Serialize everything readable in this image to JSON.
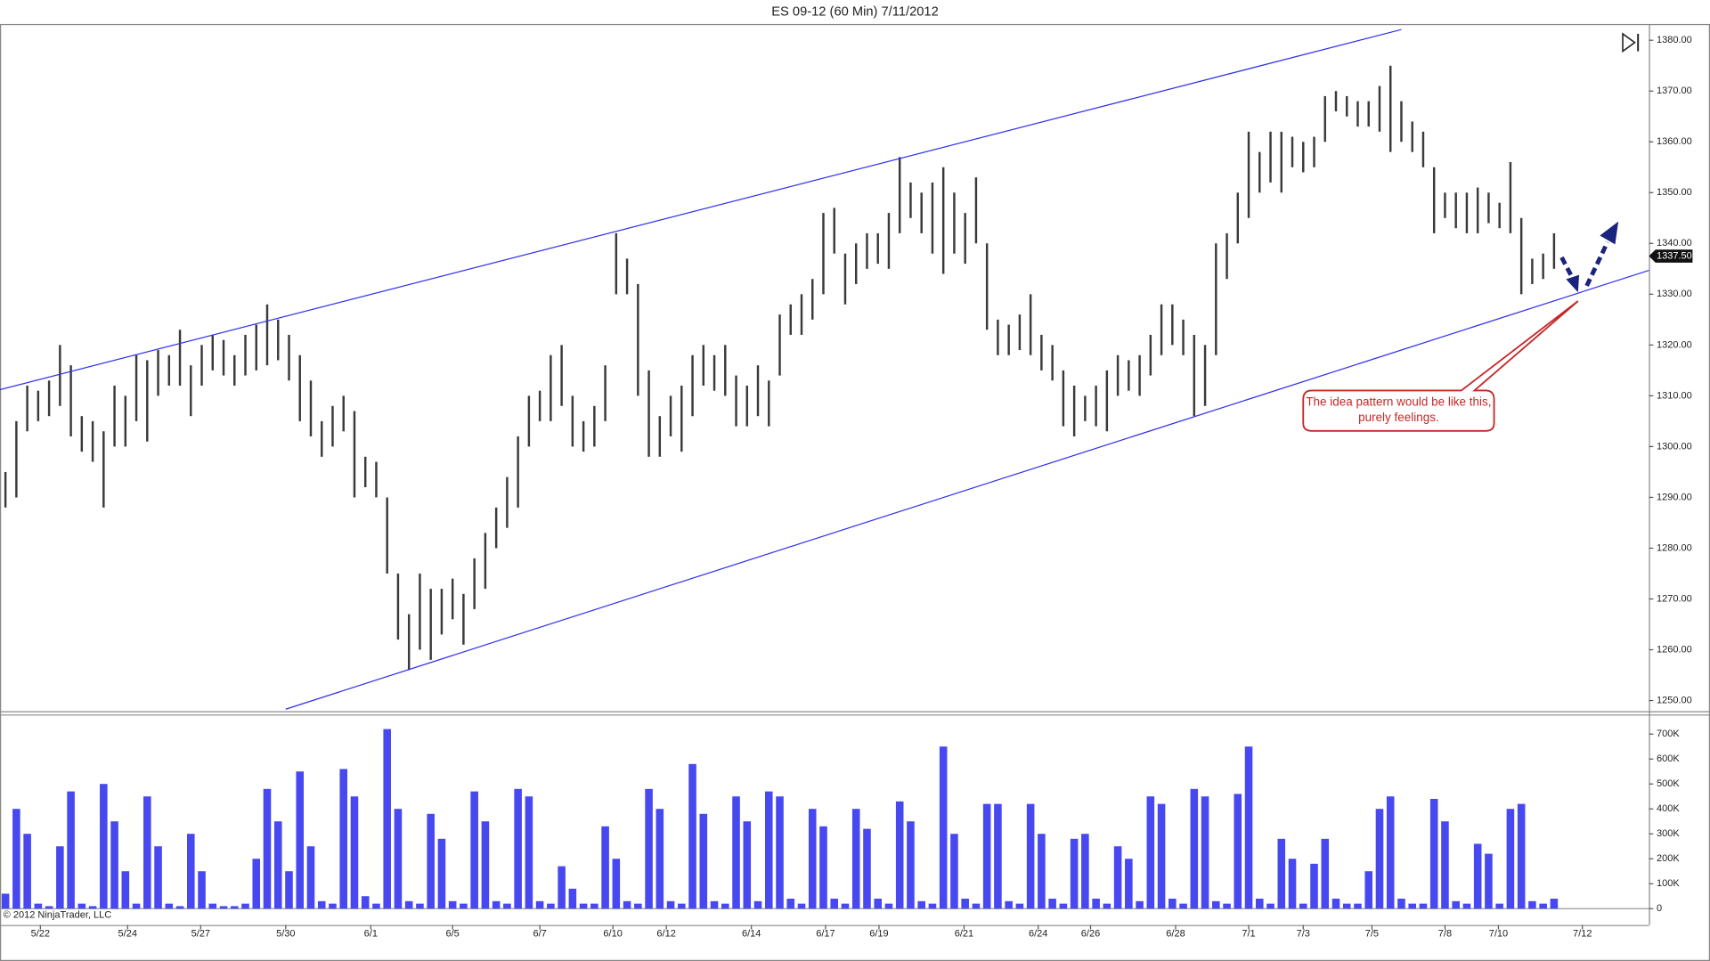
{
  "chart_data": [
    {
      "type": "ohlc",
      "title": "ES 09-12 (60 Min)  7/11/2012",
      "color": "#3a3a3a",
      "xlim": [
        -0.5,
        150.7
      ],
      "xticks": [
        {
          "value": 3.2,
          "label": "5/22"
        },
        {
          "value": 11.2,
          "label": "5/24"
        },
        {
          "value": 17.9,
          "label": "5/27"
        },
        {
          "value": 25.7,
          "label": "5/30"
        },
        {
          "value": 33.5,
          "label": "6/1"
        },
        {
          "value": 41,
          "label": "6/5"
        },
        {
          "value": 49,
          "label": "6/7"
        },
        {
          "value": 55.7,
          "label": "6/10"
        },
        {
          "value": 60.6,
          "label": "6/12"
        },
        {
          "value": 68.4,
          "label": "6/14"
        },
        {
          "value": 75.2,
          "label": "6/17"
        },
        {
          "value": 80.1,
          "label": "6/19"
        },
        {
          "value": 87.9,
          "label": "6/21"
        },
        {
          "value": 94.7,
          "label": "6/24"
        },
        {
          "value": 99.5,
          "label": "6/26"
        },
        {
          "value": 107.3,
          "label": "6/28"
        },
        {
          "value": 114,
          "label": "7/1"
        },
        {
          "value": 119,
          "label": "7/3"
        },
        {
          "value": 125.3,
          "label": "7/5"
        },
        {
          "value": 132,
          "label": "7/8"
        },
        {
          "value": 136.9,
          "label": "7/10"
        },
        {
          "value": 144.6,
          "label": "7/12"
        }
      ],
      "ylim": [
        1247.9,
        1383.2
      ],
      "yticks": [
        {
          "value": 1250,
          "label": "1250.00"
        },
        {
          "value": 1260,
          "label": "1260.00"
        },
        {
          "value": 1270,
          "label": "1270.00"
        },
        {
          "value": 1280,
          "label": "1280.00"
        },
        {
          "value": 1290,
          "label": "1290.00"
        },
        {
          "value": 1300,
          "label": "1300.00"
        },
        {
          "value": 1310,
          "label": "1310.00"
        },
        {
          "value": 1320,
          "label": "1320.00"
        },
        {
          "value": 1330,
          "label": "1330.00"
        },
        {
          "value": 1340,
          "label": "1340.00"
        },
        {
          "value": 1350,
          "label": "1350.00"
        },
        {
          "value": 1360,
          "label": "1360.00"
        },
        {
          "value": 1370,
          "label": "1370.00"
        },
        {
          "value": 1380,
          "label": "1380.00"
        }
      ],
      "high": [
        1295,
        1305,
        1312,
        1311,
        1313,
        1320,
        1316,
        1306,
        1305,
        1303,
        1312,
        1310,
        1318,
        1317,
        1319,
        1318,
        1323,
        1316,
        1320,
        1322,
        1321,
        1318,
        1322,
        1324,
        1328,
        1325,
        1322,
        1318,
        1313,
        1305,
        1308,
        1310,
        1307,
        1298,
        1297,
        1290,
        1275,
        1267,
        1275,
        1272,
        1272,
        1274,
        1271,
        1278,
        1283,
        1288,
        1294,
        1302,
        1310,
        1311,
        1318,
        1320,
        1310,
        1305,
        1308,
        1316,
        1342,
        1337,
        1332,
        1315,
        1306,
        1310,
        1312,
        1318,
        1320,
        1318,
        1320,
        1314,
        1312,
        1316,
        1313,
        1326,
        1328,
        1330,
        1333,
        1346,
        1347,
        1338,
        1340,
        1342,
        1342,
        1346,
        1357,
        1352,
        1350,
        1352,
        1355,
        1350,
        1346,
        1353,
        1340,
        1325,
        1324,
        1326,
        1330,
        1322,
        1320,
        1315,
        1312,
        1310,
        1312,
        1315,
        1318,
        1317,
        1318,
        1322,
        1328,
        1328,
        1325,
        1322,
        1320,
        1340,
        1342,
        1350,
        1362,
        1358,
        1362,
        1362,
        1361,
        1360,
        1361,
        1369,
        1370,
        1369,
        1368,
        1368,
        1371,
        1375,
        1368,
        1364,
        1362,
        1355,
        1350,
        1350,
        1350,
        1351,
        1350,
        1348,
        1356,
        1345,
        1337,
        1338,
        1342
      ],
      "low": [
        1288,
        1290,
        1303,
        1305,
        1306,
        1308,
        1302,
        1299,
        1297,
        1288,
        1300,
        1300,
        1305,
        1301,
        1310,
        1312,
        1312,
        1306,
        1312,
        1315,
        1314,
        1312,
        1314,
        1315,
        1316,
        1317,
        1313,
        1305,
        1302,
        1298,
        1300,
        1303,
        1290,
        1292,
        1290,
        1275,
        1262,
        1256,
        1260,
        1258,
        1263,
        1266,
        1261,
        1268,
        1272,
        1280,
        1284,
        1288,
        1300,
        1305,
        1305,
        1308,
        1300,
        1299,
        1300,
        1305,
        1330,
        1330,
        1310,
        1298,
        1298,
        1302,
        1299,
        1306,
        1312,
        1311,
        1310,
        1304,
        1304,
        1306,
        1304,
        1314,
        1322,
        1322,
        1325,
        1330,
        1338,
        1328,
        1332,
        1335,
        1336,
        1335,
        1342,
        1345,
        1342,
        1338,
        1334,
        1338,
        1336,
        1340,
        1323,
        1318,
        1318,
        1319,
        1318,
        1315,
        1313,
        1304,
        1302,
        1305,
        1304,
        1303,
        1310,
        1311,
        1310,
        1314,
        1318,
        1320,
        1318,
        1306,
        1308,
        1318,
        1333,
        1340,
        1345,
        1350,
        1352,
        1350,
        1355,
        1354,
        1355,
        1360,
        1366,
        1365,
        1363,
        1363,
        1362,
        1358,
        1360,
        1358,
        1355,
        1342,
        1345,
        1343,
        1342,
        1342,
        1344,
        1343,
        1342,
        1330,
        1332,
        1333,
        1335
      ],
      "last_price": {
        "value": 1337.5,
        "label": "1337.50"
      },
      "trendlines": [
        {
          "color": "#3030ee",
          "x": [
            -0.5,
            128
          ],
          "y": [
            1311.2,
            1382.1
          ]
        },
        {
          "color": "#3030ee",
          "x": [
            25.7,
            150.7
          ],
          "y": [
            1248.3,
            1334.7
          ]
        }
      ],
      "annotation": "The idea pattern would be like this, purely feelings.",
      "copyright": "© 2012 NinjaTrader, LLC"
    },
    {
      "type": "bar",
      "color": "#4848f0",
      "xlim": [
        -0.5,
        150.7
      ],
      "ylim": [
        -65600,
        778600
      ],
      "yticks": [
        {
          "value": 0,
          "label": "0"
        },
        {
          "value": 100000,
          "label": "100K"
        },
        {
          "value": 200000,
          "label": "200K"
        },
        {
          "value": 300000,
          "label": "300K"
        },
        {
          "value": 400000,
          "label": "400K"
        },
        {
          "value": 500000,
          "label": "500K"
        },
        {
          "value": 600000,
          "label": "600K"
        },
        {
          "value": 700000,
          "label": "700K"
        }
      ],
      "values": [
        60000,
        400000,
        300000,
        20000,
        10000,
        250000,
        470000,
        20000,
        10000,
        500000,
        350000,
        150000,
        20000,
        450000,
        250000,
        20000,
        10000,
        300000,
        150000,
        20000,
        10000,
        10000,
        20000,
        200000,
        480000,
        350000,
        150000,
        550000,
        250000,
        30000,
        20000,
        560000,
        450000,
        50000,
        20000,
        720000,
        400000,
        30000,
        20000,
        380000,
        280000,
        30000,
        20000,
        470000,
        350000,
        30000,
        20000,
        480000,
        450000,
        30000,
        20000,
        170000,
        80000,
        20000,
        20000,
        330000,
        200000,
        30000,
        20000,
        480000,
        400000,
        30000,
        20000,
        580000,
        380000,
        30000,
        20000,
        450000,
        350000,
        30000,
        470000,
        450000,
        40000,
        20000,
        400000,
        330000,
        40000,
        20000,
        400000,
        320000,
        40000,
        20000,
        430000,
        350000,
        30000,
        20000,
        650000,
        300000,
        40000,
        20000,
        420000,
        420000,
        30000,
        20000,
        420000,
        300000,
        40000,
        20000,
        280000,
        300000,
        40000,
        20000,
        250000,
        200000,
        30000,
        450000,
        420000,
        40000,
        20000,
        480000,
        450000,
        30000,
        20000,
        460000,
        650000,
        40000,
        20000,
        280000,
        200000,
        20000,
        180000,
        280000,
        40000,
        20000,
        20000,
        150000,
        400000,
        450000,
        40000,
        20000,
        20000,
        440000,
        350000,
        30000,
        20000,
        260000,
        220000,
        20000,
        400000,
        420000,
        30000,
        20000,
        40000
      ]
    }
  ]
}
